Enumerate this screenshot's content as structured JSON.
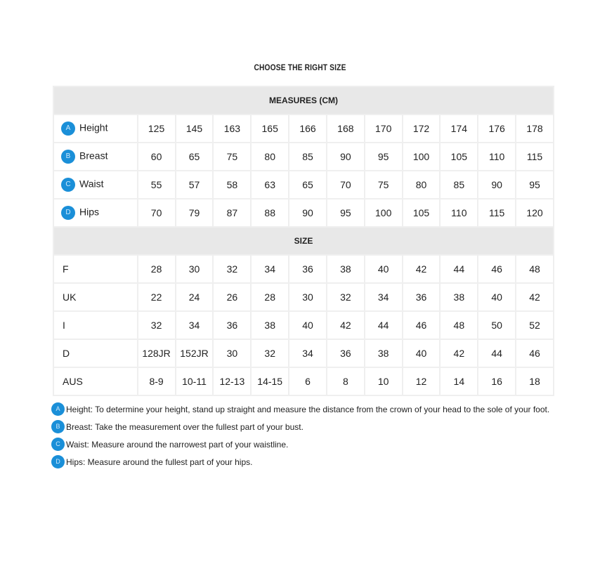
{
  "title": "CHOOSE THE RIGHT SIZE",
  "measures_header": "MEASURES (CM)",
  "measures": [
    {
      "badge": "A",
      "label": "Height",
      "values": [
        "125",
        "145",
        "163",
        "165",
        "166",
        "168",
        "170",
        "172",
        "174",
        "176",
        "178"
      ]
    },
    {
      "badge": "B",
      "label": "Breast",
      "values": [
        "60",
        "65",
        "75",
        "80",
        "85",
        "90",
        "95",
        "100",
        "105",
        "110",
        "115"
      ]
    },
    {
      "badge": "C",
      "label": "Waist",
      "values": [
        "55",
        "57",
        "58",
        "63",
        "65",
        "70",
        "75",
        "80",
        "85",
        "90",
        "95"
      ]
    },
    {
      "badge": "D",
      "label": "Hips",
      "values": [
        "70",
        "79",
        "87",
        "88",
        "90",
        "95",
        "100",
        "105",
        "110",
        "115",
        "120"
      ]
    }
  ],
  "size_header": "SIZE",
  "sizes": [
    {
      "label": "F",
      "values": [
        "28",
        "30",
        "32",
        "34",
        "36",
        "38",
        "40",
        "42",
        "44",
        "46",
        "48"
      ]
    },
    {
      "label": "UK",
      "values": [
        "22",
        "24",
        "26",
        "28",
        "30",
        "32",
        "34",
        "36",
        "38",
        "40",
        "42"
      ]
    },
    {
      "label": "I",
      "values": [
        "32",
        "34",
        "36",
        "38",
        "40",
        "42",
        "44",
        "46",
        "48",
        "50",
        "52"
      ]
    },
    {
      "label": "D",
      "values": [
        "128JR",
        "152JR",
        "30",
        "32",
        "34",
        "36",
        "38",
        "40",
        "42",
        "44",
        "46"
      ]
    },
    {
      "label": "AUS",
      "values": [
        "8-9",
        "10-11",
        "12-13",
        "14-15",
        "6",
        "8",
        "10",
        "12",
        "14",
        "16",
        "18"
      ]
    }
  ],
  "notes": [
    {
      "badge": "A",
      "text": "Height: To determine your height, stand up straight and measure the distance from the crown of your head to the sole of your foot."
    },
    {
      "badge": "B",
      "text": "Breast: Take the measurement over the fullest part of your bust."
    },
    {
      "badge": "C",
      "text": "Waist: Measure around the narrowest part of your waistline."
    },
    {
      "badge": "D",
      "text": "Hips: Measure around the fullest part of your hips."
    }
  ],
  "colors": {
    "badge": "#1a8fd8",
    "section_bg": "#e8e8e8"
  }
}
